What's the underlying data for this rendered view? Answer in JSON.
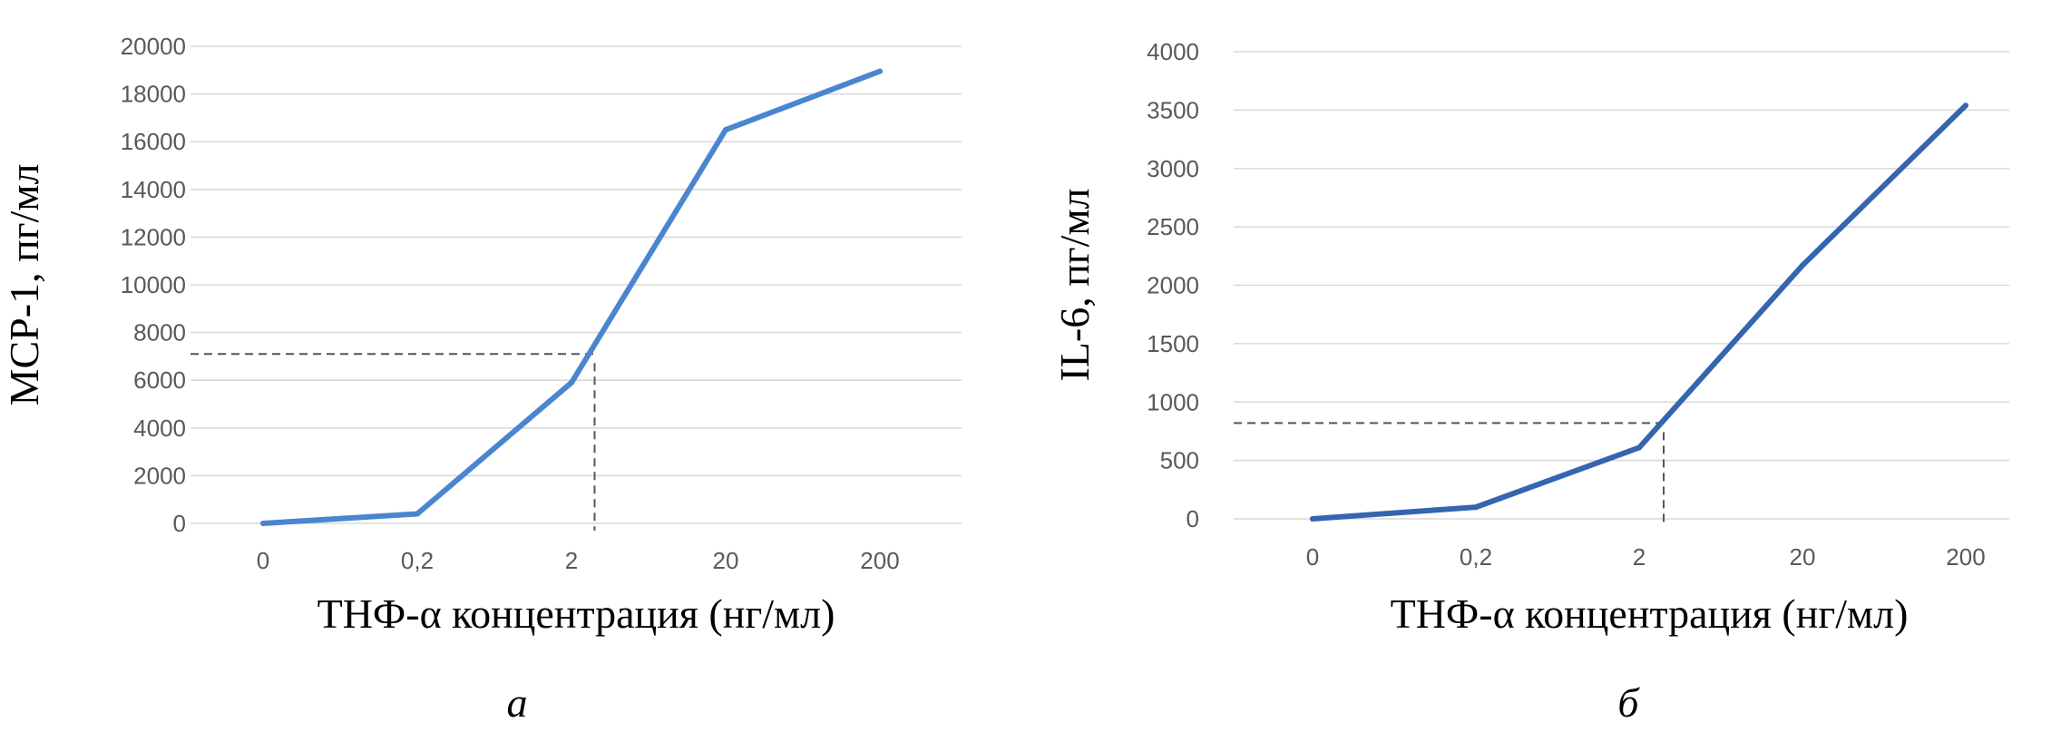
{
  "chart_data": [
    {
      "type": "line",
      "title": "",
      "xlabel": "ТНФ-α концентрация (нг/мл)",
      "ylabel": "MCP-1, пг/мл",
      "panel_label": "а",
      "categories": [
        "0",
        "0,2",
        "2",
        "20",
        "200"
      ],
      "series": [
        {
          "values": [
            0,
            400,
            5900,
            16500,
            18950
          ]
        }
      ],
      "ylim": [
        0,
        20000
      ],
      "yticks": [
        0,
        2000,
        4000,
        6000,
        8000,
        10000,
        12000,
        14000,
        16000,
        18000,
        20000
      ],
      "reference": {
        "x": 2.15,
        "y": 7100
      },
      "grid": true,
      "line_color": "#4a86cf"
    },
    {
      "type": "line",
      "title": "",
      "xlabel": "ТНФ-α концентрация (нг/мл)",
      "ylabel": "IL-6, пг/мл",
      "panel_label": "б",
      "categories": [
        "0",
        "0,2",
        "2",
        "20",
        "200"
      ],
      "series": [
        {
          "values": [
            0,
            100,
            610,
            2170,
            3540
          ]
        }
      ],
      "ylim": [
        0,
        4000
      ],
      "yticks": [
        0,
        500,
        1000,
        1500,
        2000,
        2500,
        3000,
        3500,
        4000
      ],
      "reference": {
        "x": 2.15,
        "y": 820
      },
      "grid": true,
      "line_color": "#3565b0"
    }
  ]
}
